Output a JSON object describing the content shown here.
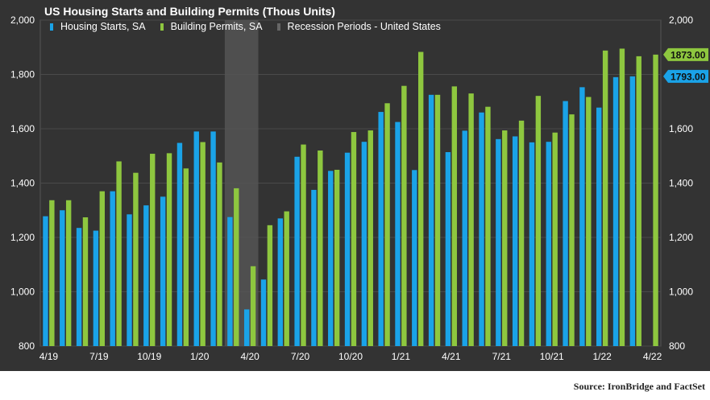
{
  "chart_data": {
    "type": "bar",
    "title": "US Housing Starts and Building Permits (Thous Units)",
    "categories": [
      "4/19",
      "5/19",
      "6/19",
      "7/19",
      "8/19",
      "9/19",
      "10/19",
      "11/19",
      "12/19",
      "1/20",
      "2/20",
      "3/20",
      "4/20",
      "5/20",
      "6/20",
      "7/20",
      "8/20",
      "9/20",
      "10/20",
      "11/20",
      "12/20",
      "1/21",
      "2/21",
      "3/21",
      "4/21",
      "5/21",
      "6/21",
      "7/21",
      "8/21",
      "9/21",
      "10/21",
      "11/21",
      "12/21",
      "1/22",
      "2/22",
      "3/22",
      "4/22"
    ],
    "series": [
      {
        "name": "Housing Starts, SA",
        "color": "#1aa3e8",
        "values": [
          1278,
          1300,
          1235,
          1225,
          1370,
          1285,
          1318,
          1350,
          1548,
          1590,
          1590,
          1275,
          935,
          1045,
          1270,
          1497,
          1375,
          1445,
          1512,
          1552,
          1662,
          1625,
          1448,
          1725,
          1514,
          1593,
          1660,
          1562,
          1572,
          1550,
          1552,
          1702,
          1753,
          1678,
          1790,
          1793,
          null
        ]
      },
      {
        "name": "Building Permits, SA",
        "color": "#8ec73f",
        "values": [
          1337,
          1337,
          1274,
          1370,
          1480,
          1438,
          1508,
          1510,
          1454,
          1551,
          1476,
          1381,
          1094,
          1245,
          1296,
          1542,
          1520,
          1449,
          1588,
          1594,
          1694,
          1758,
          1883,
          1725,
          1756,
          1730,
          1681,
          1594,
          1630,
          1721,
          1586,
          1653,
          1717,
          1888,
          1895,
          1867,
          1873
        ]
      },
      {
        "name": "Recession Periods - United States",
        "color": "#555555"
      }
    ],
    "xtick_labels": [
      "4/19",
      "7/19",
      "10/19",
      "1/20",
      "4/20",
      "7/20",
      "10/20",
      "1/21",
      "4/21",
      "7/21",
      "10/21",
      "1/22",
      "4/22"
    ],
    "ytick_labels": [
      "800",
      "1,000",
      "1,200",
      "1,400",
      "1,600",
      "1,800",
      "2,000"
    ],
    "ylim": [
      800,
      2000
    ],
    "recession_period": {
      "start": "3/20",
      "end": "4/20"
    },
    "last_value_labels": [
      {
        "text": "1873.00",
        "value": 1873,
        "color": "#8ec73f"
      },
      {
        "text": "1793.00",
        "value": 1793,
        "color": "#1aa3e8"
      }
    ],
    "grid": true,
    "legend_position": "top-left"
  },
  "source": "Source: IronBridge and FactSet"
}
